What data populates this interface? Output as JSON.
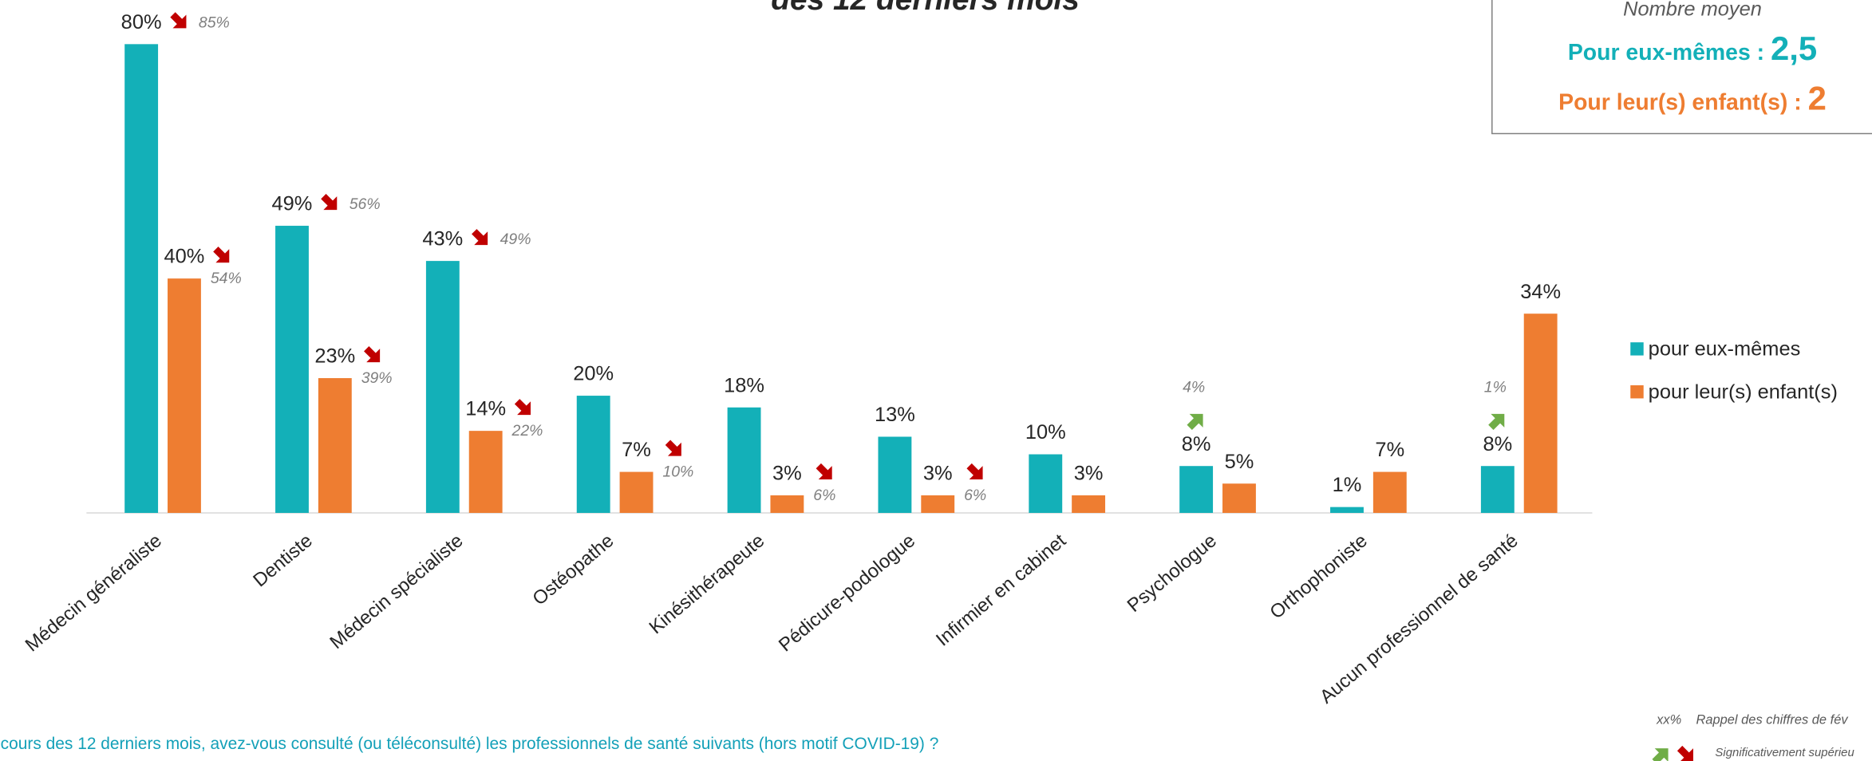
{
  "chart_data": {
    "type": "bar",
    "title": "des 12 derniers mois",
    "categories": [
      "Médecin généraliste",
      "Dentiste",
      "Médecin spécialiste",
      "Ostéopathe",
      "Kinésithérapeute",
      "Pédicure-podologue",
      "Infirmier en cabinet",
      "Psychologue",
      "Orthophoniste",
      "Aucun professionnel de santé"
    ],
    "series": [
      {
        "name": "pour eux-mêmes",
        "color": "#13b0b8",
        "values": [
          80,
          49,
          43,
          20,
          18,
          13,
          10,
          8,
          1,
          8
        ],
        "value_labels": [
          "80%",
          "49%",
          "43%",
          "20%",
          "18%",
          "13%",
          "10%",
          "8%",
          "1%",
          "8%"
        ],
        "previous": [
          85,
          56,
          49,
          null,
          null,
          null,
          null,
          4,
          null,
          1
        ],
        "previous_labels": [
          "85%",
          "56%",
          "49%",
          null,
          null,
          null,
          null,
          "4%",
          null,
          "1%"
        ],
        "trend": [
          "down",
          "down",
          "down",
          null,
          null,
          null,
          null,
          "up",
          null,
          "up"
        ]
      },
      {
        "name": "pour leur(s) enfant(s)",
        "color": "#ee7d31",
        "values": [
          40,
          23,
          14,
          7,
          3,
          3,
          3,
          5,
          7,
          34
        ],
        "value_labels": [
          "40%",
          "23%",
          "14%",
          "7%",
          "3%",
          "3%",
          "3%",
          "5%",
          "7%",
          "34%"
        ],
        "previous": [
          54,
          39,
          22,
          10,
          6,
          6,
          null,
          null,
          null,
          null
        ],
        "previous_labels": [
          "54%",
          "39%",
          "22%",
          "10%",
          "6%",
          "6%",
          null,
          null,
          null,
          null
        ],
        "trend": [
          "down",
          "down",
          "down",
          "down",
          "down",
          "down",
          null,
          null,
          null,
          null
        ]
      }
    ],
    "trend_colors": {
      "down": "#c00000",
      "up": "#70ad47"
    },
    "box": {
      "heading": "Nombre moyen",
      "line1_label": "Pour eux-mêmes : ",
      "line1_value": "2,5",
      "line2_label": "Pour leur(s) enfant(s) : ",
      "line2_value": "2"
    },
    "footnote": "cours des 12 derniers mois, avez-vous consulté (ou téléconsulté) les professionnels de santé suivants (hors motif COVID-19) ?",
    "key": {
      "previous_marker": "xx%",
      "previous_text": "Rappel des chiffres de fév",
      "significance_text": "Significativement supérieu"
    }
  }
}
